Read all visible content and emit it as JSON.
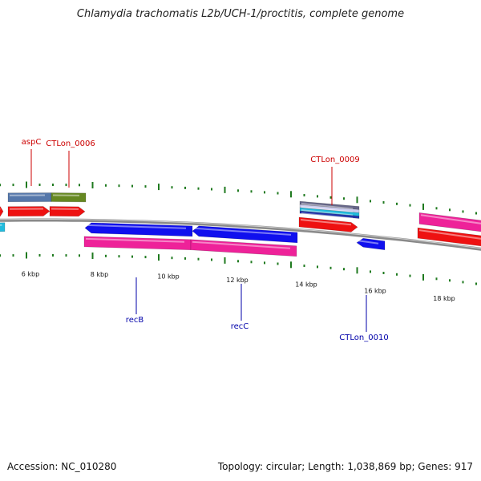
{
  "title": "Chlamydia trachomatis L2b/UCH-1/proctitis, complete genome",
  "footer": {
    "accession": "Accession: NC_010280",
    "summary": "Topology: circular; Length: 1,038,869 bp; Genes: 917"
  },
  "colors": {
    "backbone": "#8a8a8a",
    "tick": "#1f7a1f",
    "label_forward": "#cc0000",
    "label_reverse": "#0000aa",
    "gene_red": "#ee1111",
    "gene_magenta": "#ee2299",
    "gene_blue": "#1010ee",
    "gene_steelblue": "#5577aa",
    "gene_olive": "#668822",
    "gene_cyan": "#22bbdd"
  },
  "scale": {
    "tick_labels": [
      "6 kbp",
      "8 kbp",
      "10 kbp",
      "12 kbp",
      "14 kbp",
      "16 kbp",
      "18 kbp"
    ]
  },
  "gene_labels": [
    {
      "text": "aspC",
      "strand": "forward"
    },
    {
      "text": "CTLon_0006",
      "strand": "forward"
    },
    {
      "text": "CTLon_0009",
      "strand": "forward"
    },
    {
      "text": "recB",
      "strand": "reverse"
    },
    {
      "text": "recC",
      "strand": "reverse"
    },
    {
      "text": "CTLon_0010",
      "strand": "reverse"
    }
  ]
}
